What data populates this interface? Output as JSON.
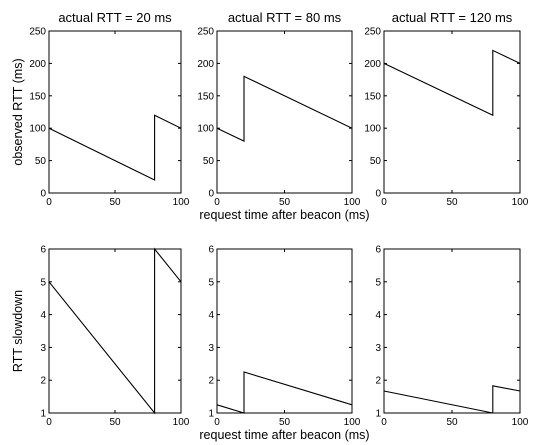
{
  "chart_data": [
    {
      "type": "line",
      "title": "actual RTT = 20 ms",
      "xlabel": "",
      "ylabel": "observed RTT (ms)",
      "xlim": [
        0,
        100
      ],
      "ylim": [
        0,
        250
      ],
      "xticks": [
        "0",
        "50",
        "100"
      ],
      "yticks": [
        "0",
        "50",
        "100",
        "150",
        "200",
        "250"
      ],
      "series": [
        {
          "x": [
            0,
            80,
            80,
            100
          ],
          "y": [
            100,
            20,
            120,
            100
          ]
        }
      ]
    },
    {
      "type": "line",
      "title": "actual RTT = 80 ms",
      "xlabel": "request time after beacon (ms)",
      "ylabel": "",
      "xlim": [
        0,
        100
      ],
      "ylim": [
        0,
        250
      ],
      "xticks": [
        "0",
        "50",
        "100"
      ],
      "yticks": [
        "0",
        "50",
        "100",
        "150",
        "200",
        "250"
      ],
      "series": [
        {
          "x": [
            0,
            20,
            20,
            100
          ],
          "y": [
            100,
            80,
            180,
            100
          ]
        }
      ]
    },
    {
      "type": "line",
      "title": "actual RTT = 120 ms",
      "xlabel": "",
      "ylabel": "",
      "xlim": [
        0,
        100
      ],
      "ylim": [
        0,
        250
      ],
      "xticks": [
        "0",
        "50",
        "100"
      ],
      "yticks": [
        "0",
        "50",
        "100",
        "150",
        "200",
        "250"
      ],
      "series": [
        {
          "x": [
            0,
            80,
            80,
            100
          ],
          "y": [
            200,
            120,
            220,
            200
          ]
        }
      ]
    },
    {
      "type": "line",
      "title": "",
      "xlabel": "",
      "ylabel": "RTT slowdown",
      "xlim": [
        0,
        100
      ],
      "ylim": [
        1,
        6
      ],
      "xticks": [
        "0",
        "50",
        "100"
      ],
      "yticks": [
        "1",
        "2",
        "3",
        "4",
        "5",
        "6"
      ],
      "series": [
        {
          "x": [
            0,
            80,
            80,
            100
          ],
          "y": [
            5,
            1,
            6,
            5
          ]
        }
      ]
    },
    {
      "type": "line",
      "title": "",
      "xlabel": "request time after beacon (ms)",
      "ylabel": "",
      "xlim": [
        0,
        100
      ],
      "ylim": [
        1,
        6
      ],
      "xticks": [
        "0",
        "50",
        "100"
      ],
      "yticks": [
        "1",
        "2",
        "3",
        "4",
        "5",
        "6"
      ],
      "series": [
        {
          "x": [
            0,
            20,
            20,
            100
          ],
          "y": [
            1.25,
            1,
            2.25,
            1.25
          ]
        }
      ]
    },
    {
      "type": "line",
      "title": "",
      "xlabel": "",
      "ylabel": "",
      "xlim": [
        0,
        100
      ],
      "ylim": [
        1,
        6
      ],
      "xticks": [
        "0",
        "50",
        "100"
      ],
      "yticks": [
        "1",
        "2",
        "3",
        "4",
        "5",
        "6"
      ],
      "series": [
        {
          "x": [
            0,
            80,
            80,
            100
          ],
          "y": [
            1.67,
            1,
            1.83,
            1.67
          ]
        }
      ]
    }
  ]
}
